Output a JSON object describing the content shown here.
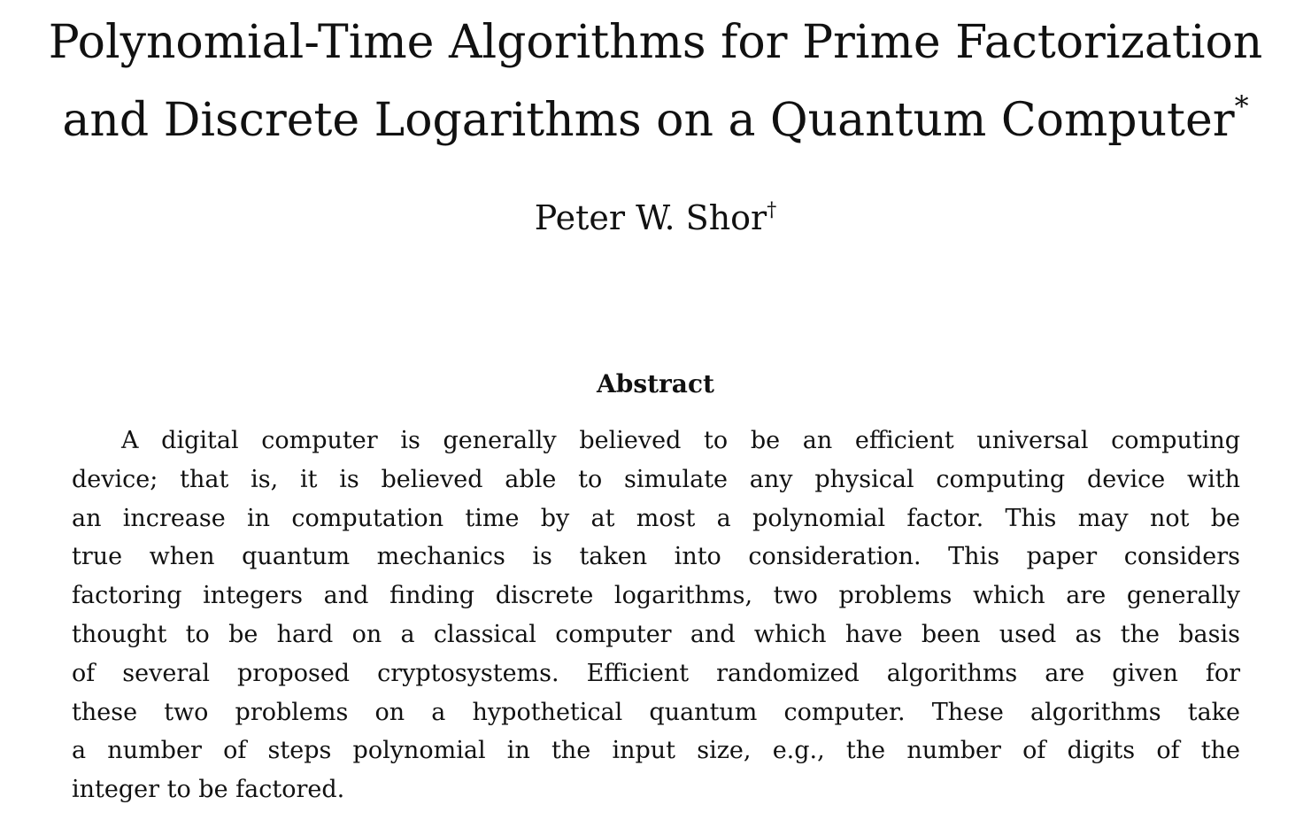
{
  "paper": {
    "title_lines": [
      "Polynomial-Time Algorithms for Prime Factorization",
      "and Discrete Logarithms on a Quantum Computer"
    ],
    "title_footnote_mark": "*",
    "author": "Peter W. Shor",
    "author_footnote_mark": "†",
    "abstract_heading": "Abstract",
    "abstract_lines": [
      "A digital computer is generally believed to be an efficient universal computing",
      "device; that is, it is believed able to simulate any physical computing device with",
      "an increase in computation time by at most a polynomial factor. This may not be",
      "true when quantum mechanics is taken into consideration. This paper considers",
      "factoring integers and finding discrete logarithms, two problems which are generally",
      "thought to be hard on a classical computer and which have been used as the basis",
      "of several proposed cryptosystems. Efficient randomized algorithms are given for",
      "these two problems on a hypothetical quantum computer. These algorithms take",
      "a number of steps polynomial in the input size, e.g., the number of digits of the",
      "integer to be factored."
    ]
  }
}
